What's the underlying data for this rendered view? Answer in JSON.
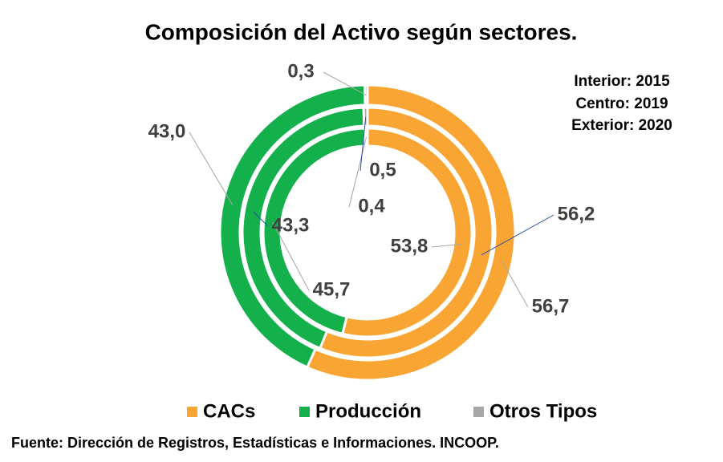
{
  "chart_data": {
    "type": "donut",
    "title": "Composición del Activo según sectores.",
    "categories": [
      "CACs",
      "Producción",
      "Otros Tipos"
    ],
    "colors": [
      "#f9a533",
      "#13b04b",
      "#a6a6a6"
    ],
    "series": [
      {
        "name": "Interior: 2015",
        "values": [
          53.8,
          45.7,
          0.4
        ],
        "value_labels": [
          "53,8",
          "45,7",
          "0,4"
        ]
      },
      {
        "name": "Centro: 2019",
        "values": [
          56.2,
          43.3,
          0.5
        ],
        "value_labels": [
          "56,2",
          "43,3",
          "0,5"
        ]
      },
      {
        "name": "Exterior: 2020",
        "values": [
          56.7,
          43.0,
          0.3
        ],
        "value_labels": [
          "56,7",
          "43,0",
          "0,3"
        ]
      }
    ],
    "source": "Fuente: Dirección de Registros, Estadísticas e Informaciones. INCOOP."
  }
}
